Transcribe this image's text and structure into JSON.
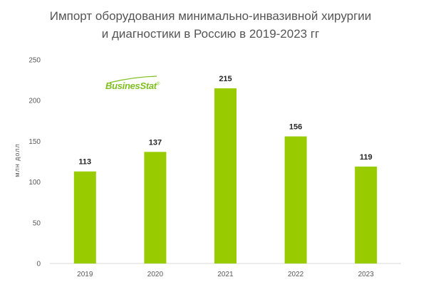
{
  "title": {
    "line1": "Импорт оборудования минимально-инвазивной хирургии",
    "line2": "и диагностики в Россию в 2019-2023 гг"
  },
  "logo": {
    "text": "BusinesStat",
    "mark": "®"
  },
  "colors": {
    "bar": "#99cc00",
    "axis_line": "#d9d9d9",
    "text": "#595959",
    "label": "#262626"
  },
  "chart_data": {
    "type": "bar",
    "categories": [
      "2019",
      "2020",
      "2021",
      "2022",
      "2023"
    ],
    "values": [
      113,
      137,
      215,
      156,
      119
    ],
    "data_labels": [
      "113",
      "137",
      "215",
      "156",
      "119"
    ],
    "ylabel": "млн долл",
    "ylim": [
      0,
      250
    ],
    "yticks": [
      "0",
      "50",
      "100",
      "150",
      "200",
      "250"
    ],
    "grid": false,
    "legend": "none"
  }
}
